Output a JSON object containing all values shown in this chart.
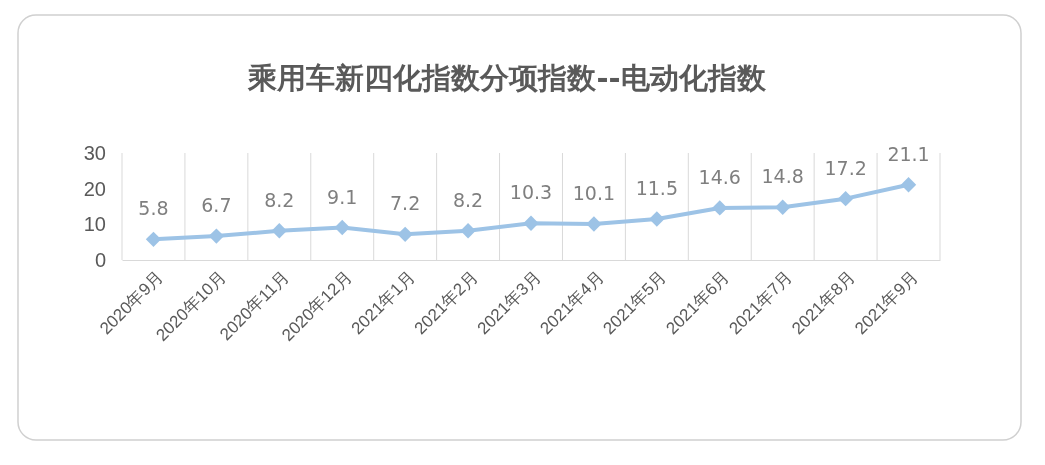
{
  "chart_data": {
    "type": "line",
    "title": "乘用车新四化指数分项指数--电动化指数",
    "categories": [
      "2020年9月",
      "2020年10月",
      "2020年11月",
      "2020年12月",
      "2021年1月",
      "2021年2月",
      "2021年3月",
      "2021年4月",
      "2021年5月",
      "2021年6月",
      "2021年7月",
      "2021年8月",
      "2021年9月"
    ],
    "series": [
      {
        "color": "#9dc3e6",
        "values": [
          5.8,
          6.7,
          8.2,
          9.1,
          7.2,
          8.2,
          10.3,
          10.1,
          11.5,
          14.6,
          14.8,
          17.2,
          21.1
        ]
      }
    ],
    "ylim": [
      0,
      30
    ],
    "yticks": [
      0,
      10,
      20,
      30
    ],
    "grid": "x",
    "marker": "diamond",
    "line_style": "solid",
    "data_labels": true,
    "legend": false
  }
}
